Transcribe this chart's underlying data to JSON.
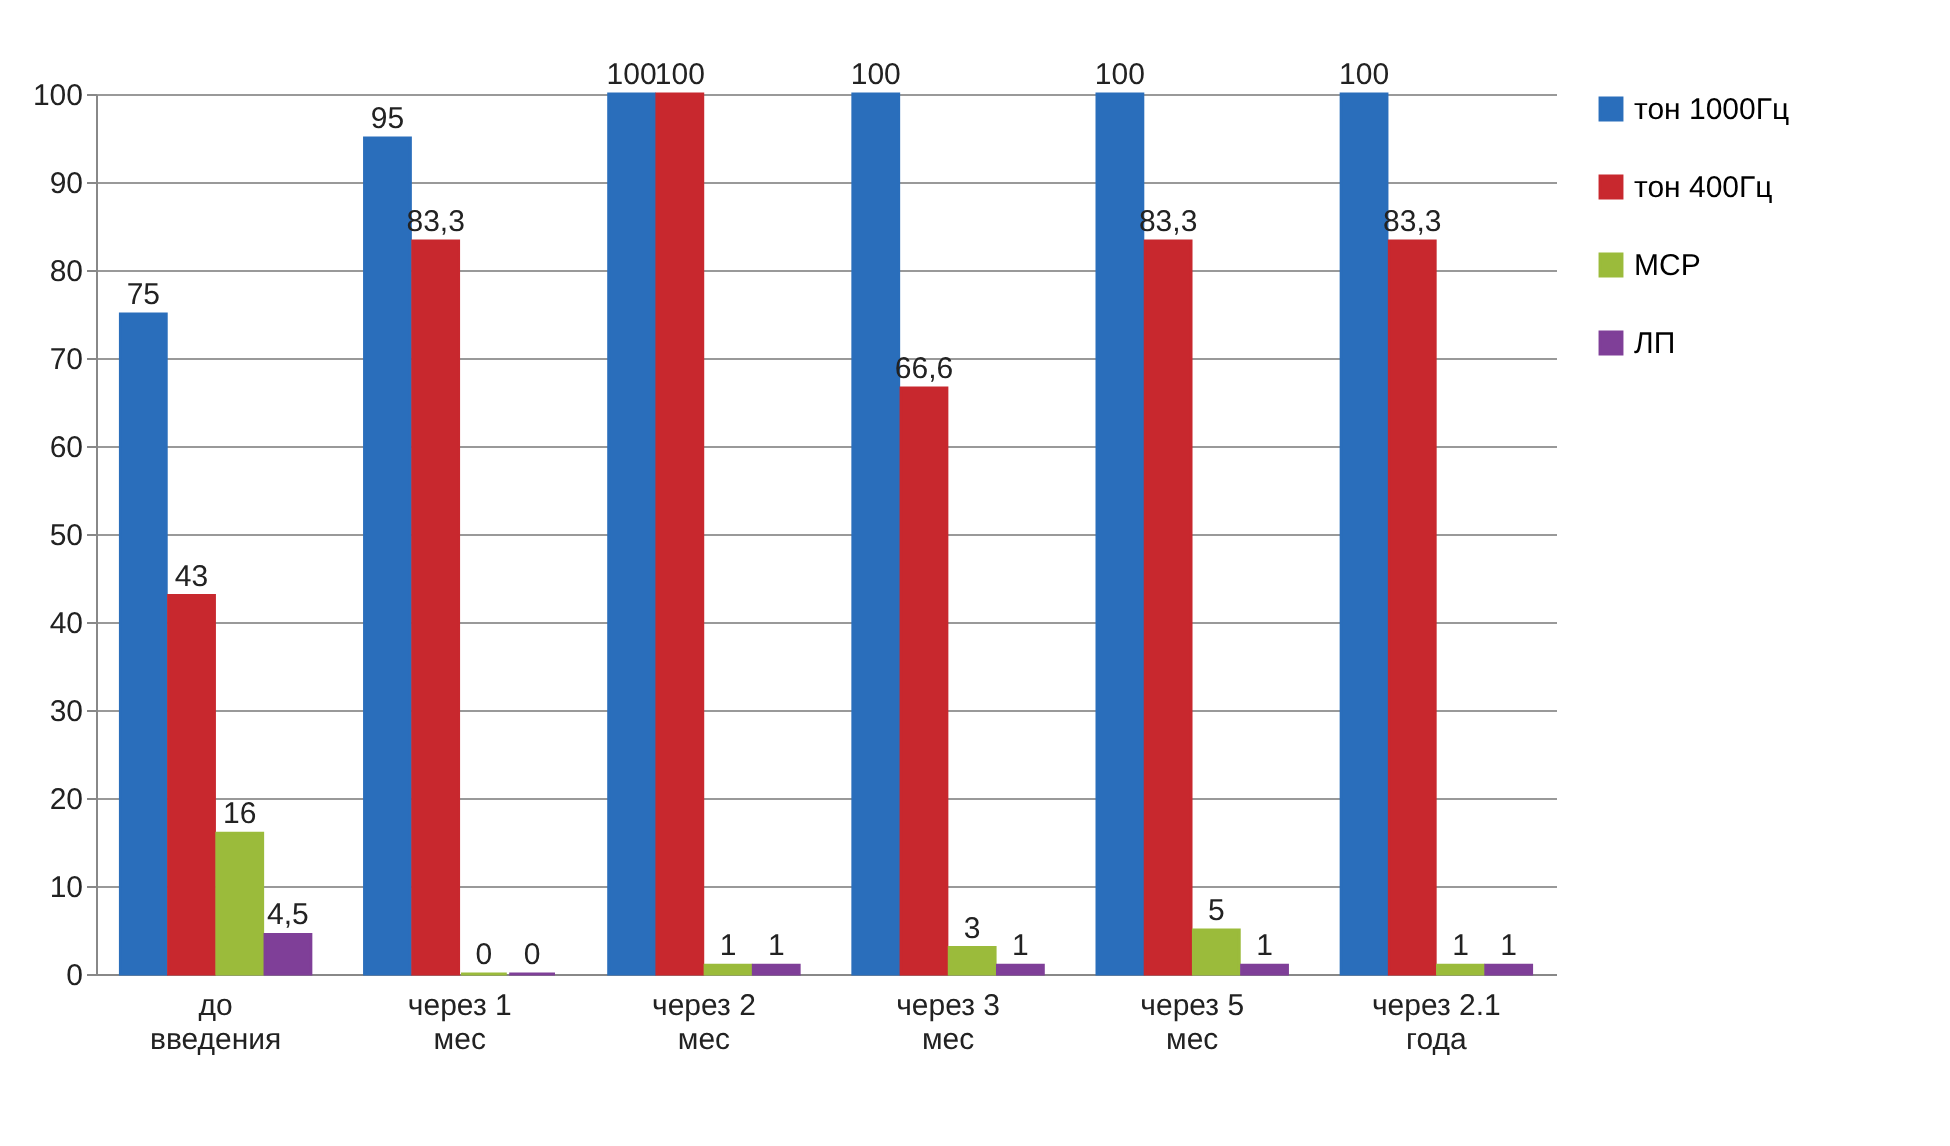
{
  "chart_data": {
    "type": "bar",
    "categories": [
      "до введения",
      "через 1 мес",
      "через 2 мес",
      "через 3 мес",
      "через 5 мес",
      "через 2.1 года"
    ],
    "series": [
      {
        "name": "тон 1000Гц",
        "color": "#2a6ebb",
        "values": [
          75,
          95,
          100,
          100,
          100,
          100
        ],
        "value_labels": [
          "75",
          "95",
          "100",
          "100",
          "100",
          "100"
        ]
      },
      {
        "name": "тон 400Гц",
        "color": "#c8282e",
        "values": [
          43,
          83.3,
          100,
          66.6,
          83.3,
          83.3
        ],
        "value_labels": [
          "43",
          "83,3",
          "100",
          "66,6",
          "83,3",
          "83,3"
        ]
      },
      {
        "name": "МСР",
        "color": "#9bbb3b",
        "values": [
          16,
          0,
          1,
          3,
          5,
          1
        ],
        "value_labels": [
          "16",
          "0",
          "1",
          "3",
          "5",
          "1"
        ]
      },
      {
        "name": "ЛП",
        "color": "#7f3f98",
        "values": [
          4.5,
          0,
          1,
          1,
          1,
          1
        ],
        "value_labels": [
          "4,5",
          "0",
          "1",
          "1",
          "1",
          "1"
        ]
      }
    ],
    "ylim": [
      0,
      100
    ],
    "yticks": [
      0,
      10,
      20,
      30,
      40,
      50,
      60,
      70,
      80,
      90,
      100
    ],
    "grid": "y",
    "legend": "right"
  }
}
